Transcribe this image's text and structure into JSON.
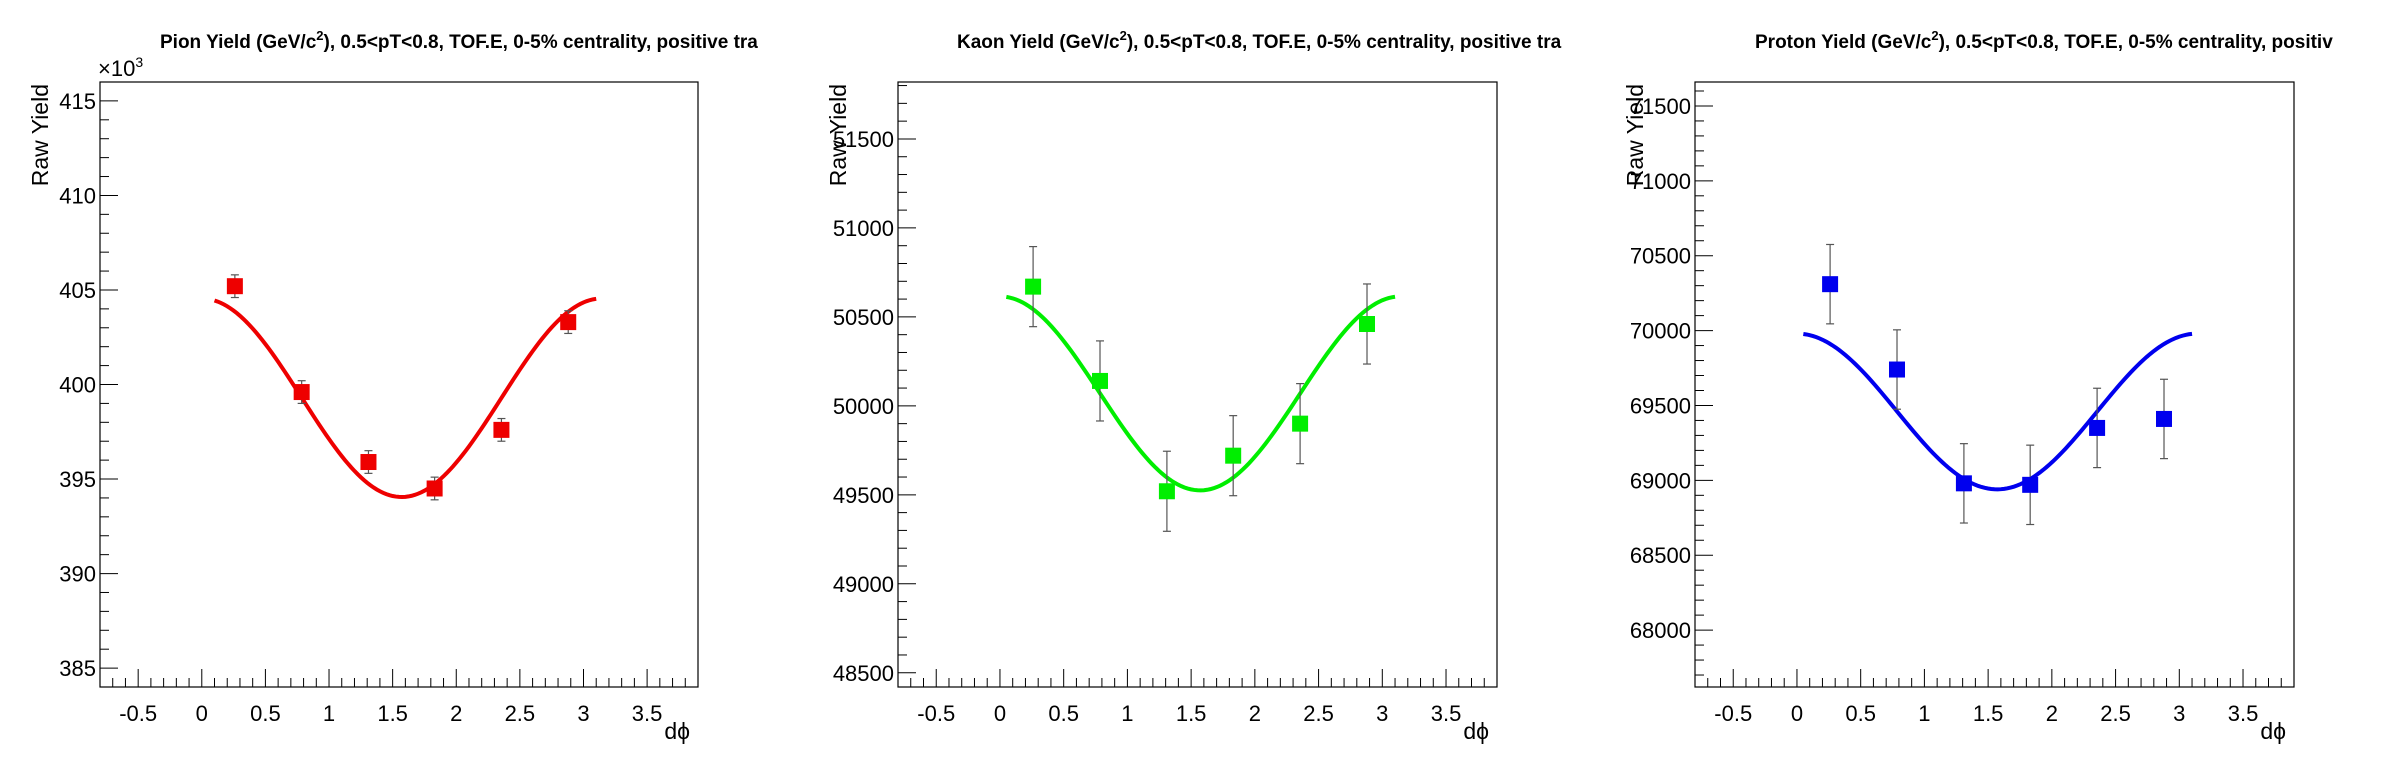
{
  "charts": [
    {
      "type": "scatter",
      "title_main": "Pion Yield (GeV/c",
      "title_sup": "2",
      "title_rest": "), 0.5<pT<0.8, TOF.E, 0-5% centrality, positive tra",
      "xlabel": "dϕ",
      "ylabel": "Raw Yield",
      "multiplier_base": "×10",
      "multiplier_exp": "3",
      "color": "#ee0000",
      "xlim": [
        -0.8,
        3.9
      ],
      "ylim": [
        384,
        416
      ],
      "xticks": [
        -0.5,
        0,
        0.5,
        1,
        1.5,
        2,
        2.5,
        3,
        3.5
      ],
      "xtick_labels": [
        "-0.5",
        "0",
        "0.5",
        "1",
        "1.5",
        "2",
        "2.5",
        "3",
        "3.5"
      ],
      "yticks": [
        385,
        390,
        395,
        400,
        405,
        410,
        415
      ],
      "ytick_labels": [
        "385",
        "390",
        "395",
        "400",
        "405",
        "410",
        "415"
      ],
      "ymajor": 5,
      "yminor": 1,
      "points": {
        "x": [
          0.26,
          0.785,
          1.31,
          1.83,
          2.355,
          2.88
        ],
        "y": [
          405.2,
          399.6,
          395.9,
          394.5,
          397.6,
          403.3
        ],
        "err": [
          0.6,
          0.6,
          0.6,
          0.6,
          0.6,
          0.6
        ]
      },
      "fit": {
        "A": 399.3,
        "B": 5.25,
        "x_range": [
          0.1,
          3.1
        ]
      }
    },
    {
      "type": "scatter",
      "title_main": "Kaon Yield (GeV/c",
      "title_sup": "2",
      "title_rest": "), 0.5<pT<0.8, TOF.E, 0-5% centrality, positive tra",
      "xlabel": "dϕ",
      "ylabel": "Raw Yield",
      "multiplier_base": "",
      "multiplier_exp": "",
      "color": "#00ee00",
      "xlim": [
        -0.8,
        3.9
      ],
      "ylim": [
        48420,
        51820
      ],
      "xticks": [
        -0.5,
        0,
        0.5,
        1,
        1.5,
        2,
        2.5,
        3,
        3.5
      ],
      "xtick_labels": [
        "-0.5",
        "0",
        "0.5",
        "1",
        "1.5",
        "2",
        "2.5",
        "3",
        "3.5"
      ],
      "yticks": [
        48500,
        49000,
        49500,
        50000,
        50500,
        51000,
        51500
      ],
      "ytick_labels": [
        "48500",
        "49000",
        "49500",
        "50000",
        "50500",
        "51000",
        "51500"
      ],
      "ymajor": 500,
      "yminor": 100,
      "points": {
        "x": [
          0.26,
          0.785,
          1.31,
          1.83,
          2.355,
          2.88
        ],
        "y": [
          50670,
          50140,
          49520,
          49720,
          49900,
          50460
        ],
        "err": [
          225,
          225,
          225,
          225,
          225,
          225
        ]
      },
      "fit": {
        "A": 50070,
        "B": 545,
        "x_range": [
          0.05,
          3.1
        ]
      }
    },
    {
      "type": "scatter",
      "title_main": "Proton Yield (GeV/c",
      "title_sup": "2",
      "title_rest": "), 0.5<pT<0.8, TOF.E, 0-5% centrality, positiv",
      "xlabel": "dϕ",
      "ylabel": "Raw Yield",
      "multiplier_base": "",
      "multiplier_exp": "",
      "color": "#0000ee",
      "xlim": [
        -0.8,
        3.9
      ],
      "ylim": [
        67620,
        71660
      ],
      "xticks": [
        -0.5,
        0,
        0.5,
        1,
        1.5,
        2,
        2.5,
        3,
        3.5
      ],
      "xtick_labels": [
        "-0.5",
        "0",
        "0.5",
        "1",
        "1.5",
        "2",
        "2.5",
        "3",
        "3.5"
      ],
      "yticks": [
        68000,
        68500,
        69000,
        69500,
        70000,
        70500,
        71000,
        71500
      ],
      "ytick_labels": [
        "68000",
        "68500",
        "69000",
        "69500",
        "70000",
        "70500",
        "71000",
        "71500"
      ],
      "ymajor": 500,
      "yminor": 100,
      "points": {
        "x": [
          0.26,
          0.785,
          1.31,
          1.83,
          2.355,
          2.88
        ],
        "y": [
          70310,
          69740,
          68980,
          68970,
          69350,
          69410
        ],
        "err": [
          265,
          265,
          265,
          265,
          265,
          265
        ]
      },
      "fit": {
        "A": 69460,
        "B": 520,
        "x_range": [
          0.05,
          3.1
        ]
      }
    }
  ]
}
